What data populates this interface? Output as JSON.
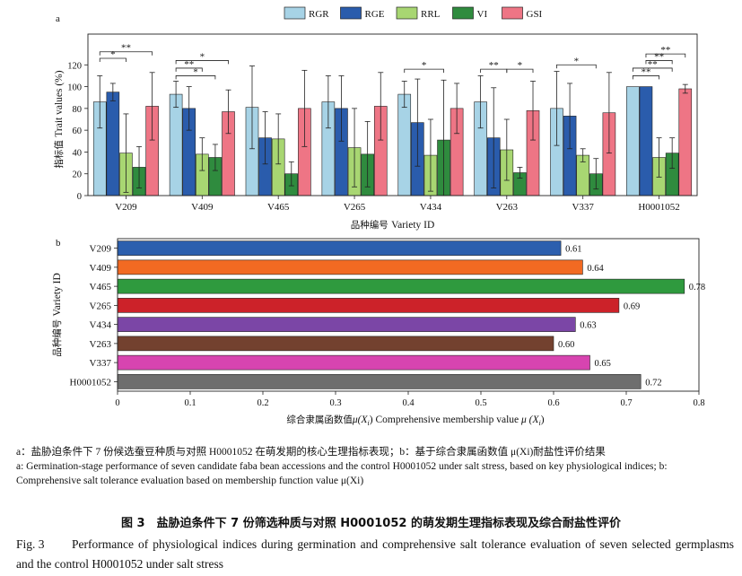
{
  "chart_data": [
    {
      "type": "bar",
      "panel": "a",
      "categories": [
        "V209",
        "V409",
        "V465",
        "V265",
        "V434",
        "V263",
        "V337",
        "H0001052"
      ],
      "series": [
        {
          "name": "RGR",
          "color": "#a7d3e6",
          "values": [
            86,
            93,
            81,
            86,
            93,
            86,
            80,
            100
          ],
          "err": [
            24,
            12,
            38,
            24,
            12,
            24,
            34,
            0
          ]
        },
        {
          "name": "RGE",
          "color": "#2a5cac",
          "values": [
            95,
            80,
            53,
            80,
            67,
            53,
            73,
            100
          ],
          "err": [
            8,
            20,
            24,
            30,
            40,
            46,
            30,
            0
          ]
        },
        {
          "name": "RRL",
          "color": "#a8d672",
          "values": [
            39,
            38,
            52,
            44,
            37,
            42,
            37,
            35
          ],
          "err": [
            36,
            15,
            23,
            36,
            33,
            28,
            6,
            18
          ]
        },
        {
          "name": "VI",
          "color": "#2f8b3e",
          "values": [
            26,
            35,
            20,
            38,
            51,
            21,
            20,
            39
          ],
          "err": [
            19,
            12,
            11,
            30,
            55,
            5,
            14,
            14
          ]
        },
        {
          "name": "GSI",
          "color": "#ee7585",
          "values": [
            82,
            77,
            80,
            82,
            80,
            78,
            76,
            98
          ],
          "err": [
            31,
            20,
            35,
            31,
            23,
            27,
            37,
            4
          ]
        }
      ],
      "ylim": [
        0,
        140
      ],
      "yticks": [
        "0",
        "20",
        "40",
        "60",
        "80",
        "100",
        "120"
      ],
      "ylabel_cn": "指标值",
      "ylabel_en": "Trait values (%)",
      "xlabel_cn": "品种编号",
      "xlabel_en": "Variety ID",
      "significance": [
        {
          "group": 0,
          "from": 0,
          "to": 4,
          "y": 132,
          "label": "**"
        },
        {
          "group": 0,
          "from": 0,
          "to": 2,
          "y": 126,
          "label": "*"
        },
        {
          "group": 1,
          "from": 0,
          "to": 4,
          "y": 124,
          "label": "*"
        },
        {
          "group": 1,
          "from": 0,
          "to": 2,
          "y": 117,
          "label": "**"
        },
        {
          "group": 1,
          "from": 0,
          "to": 3,
          "y": 110,
          "label": "*"
        },
        {
          "group": 4,
          "from": 0,
          "to": 3,
          "y": 116,
          "label": "*"
        },
        {
          "group": 5,
          "from": 0,
          "to": 2,
          "y": 116,
          "label": "**"
        },
        {
          "group": 5,
          "from": 2,
          "to": 4,
          "y": 116,
          "label": "*"
        },
        {
          "group": 6,
          "from": 0,
          "to": 3,
          "y": 120,
          "label": "*"
        },
        {
          "group": 7,
          "from": 1,
          "to": 4,
          "y": 130,
          "label": "**"
        },
        {
          "group": 7,
          "from": 1,
          "to": 3,
          "y": 124,
          "label": "**"
        },
        {
          "group": 7,
          "from": 0,
          "to": 3,
          "y": 117,
          "label": "**"
        },
        {
          "group": 7,
          "from": 0,
          "to": 2,
          "y": 110,
          "label": "**"
        }
      ]
    },
    {
      "type": "bar",
      "panel": "b",
      "orientation": "horizontal",
      "categories": [
        "V209",
        "V409",
        "V465",
        "V265",
        "V434",
        "V263",
        "V337",
        "H0001052"
      ],
      "values": [
        0.61,
        0.64,
        0.78,
        0.69,
        0.63,
        0.6,
        0.65,
        0.72
      ],
      "value_labels": [
        "0.61",
        "0.64",
        "0.78",
        "0.69",
        "0.63",
        "0.60",
        "0.65",
        "0.72"
      ],
      "colors": [
        "#2c5fae",
        "#f26a22",
        "#2f9a3e",
        "#cc2229",
        "#7b46a6",
        "#73412f",
        "#d744b0",
        "#6e6e6e"
      ],
      "xlim": [
        0,
        0.8
      ],
      "xticks": [
        "0",
        "0.1",
        "0.2",
        "0.3",
        "0.4",
        "0.5",
        "0.6",
        "0.7",
        "0.8"
      ],
      "ylabel_cn": "品种编号",
      "ylabel_en": "Variety ID",
      "xlabel_cn": "综合隶属函数值",
      "xlabel_en": "Comprehensive membership value"
    }
  ],
  "panel_labels": {
    "a": "a",
    "b": "b"
  },
  "caption": {
    "cn": "a：盐胁迫条件下 7 份候选蚕豆种质与对照 H0001052 在萌发期的核心生理指标表现；b：基于综合隶属函数值 μ(Xi)耐盐性评价结果",
    "en": "a: Germination-stage performance of seven candidate faba bean accessions and the control H0001052 under salt stress, based on key physiological indices; b: Comprehensive salt tolerance evaluation based on membership function value μ(Xi)"
  },
  "figure_title_cn": "图 3　盐胁迫条件下 7 份筛选种质与对照 H0001052 的萌发期生理指标表现及综合耐盐性评价",
  "figure_title_en_label": "Fig. 3",
  "figure_title_en": "Performance of physiological indices during germination and comprehensive salt tolerance evaluation of seven selected germplasms and the control H0001052 under salt stress"
}
